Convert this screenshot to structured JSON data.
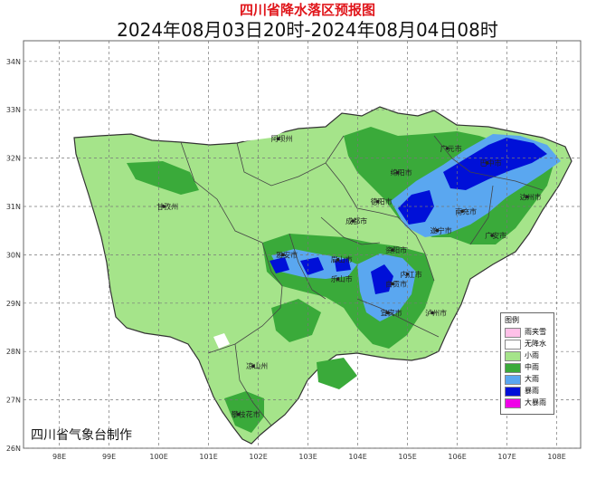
{
  "title": "四川省降水落区预报图",
  "subtitle": "2024年08月03日20时-2024年08月04日08时",
  "credit": "四川省气象台制作",
  "axes": {
    "lon_ticks": [
      "98E",
      "99E",
      "100E",
      "101E",
      "102E",
      "103E",
      "104E",
      "105E",
      "106E",
      "107E",
      "108E"
    ],
    "lat_ticks": [
      "34N",
      "33N",
      "32N",
      "31N",
      "30N",
      "29N",
      "28N",
      "27N",
      "26N"
    ]
  },
  "cities": [
    {
      "name": "阿坝州",
      "lon": 102.4,
      "lat": 32.4
    },
    {
      "name": "广元市",
      "lon": 105.8,
      "lat": 32.2
    },
    {
      "name": "巴中市",
      "lon": 106.6,
      "lat": 31.9
    },
    {
      "name": "绵阳市",
      "lon": 104.8,
      "lat": 31.7
    },
    {
      "name": "达州市",
      "lon": 107.4,
      "lat": 31.2
    },
    {
      "name": "德阳市",
      "lon": 104.4,
      "lat": 31.1
    },
    {
      "name": "南充市",
      "lon": 106.1,
      "lat": 30.9
    },
    {
      "name": "甘孜州",
      "lon": 100.1,
      "lat": 31.0
    },
    {
      "name": "成都市",
      "lon": 103.9,
      "lat": 30.7
    },
    {
      "name": "遂宁市",
      "lon": 105.6,
      "lat": 30.5
    },
    {
      "name": "广安市",
      "lon": 106.7,
      "lat": 30.4
    },
    {
      "name": "资阳市",
      "lon": 104.7,
      "lat": 30.1
    },
    {
      "name": "雅安市",
      "lon": 102.5,
      "lat": 30.0
    },
    {
      "name": "眉山市",
      "lon": 103.6,
      "lat": 29.9
    },
    {
      "name": "内江市",
      "lon": 105.0,
      "lat": 29.6
    },
    {
      "name": "乐山市",
      "lon": 103.6,
      "lat": 29.5
    },
    {
      "name": "自贡市",
      "lon": 104.7,
      "lat": 29.4
    },
    {
      "name": "宜宾市",
      "lon": 104.6,
      "lat": 28.8
    },
    {
      "name": "泸州市",
      "lon": 105.5,
      "lat": 28.8
    },
    {
      "name": "凉山州",
      "lon": 101.9,
      "lat": 27.7
    },
    {
      "name": "攀枝花市",
      "lon": 101.6,
      "lat": 26.7
    }
  ],
  "legend": {
    "title": "图例",
    "items": [
      {
        "label": "雨夹雪",
        "color": "#ffc0e8"
      },
      {
        "label": "无降水",
        "color": "#ffffff"
      },
      {
        "label": "小雨",
        "color": "#a5e48a"
      },
      {
        "label": "中雨",
        "color": "#3aaa3a"
      },
      {
        "label": "大雨",
        "color": "#5aa7f0"
      },
      {
        "label": "暴雨",
        "color": "#0010d8"
      },
      {
        "label": "大暴雨",
        "color": "#f000e8"
      }
    ]
  }
}
